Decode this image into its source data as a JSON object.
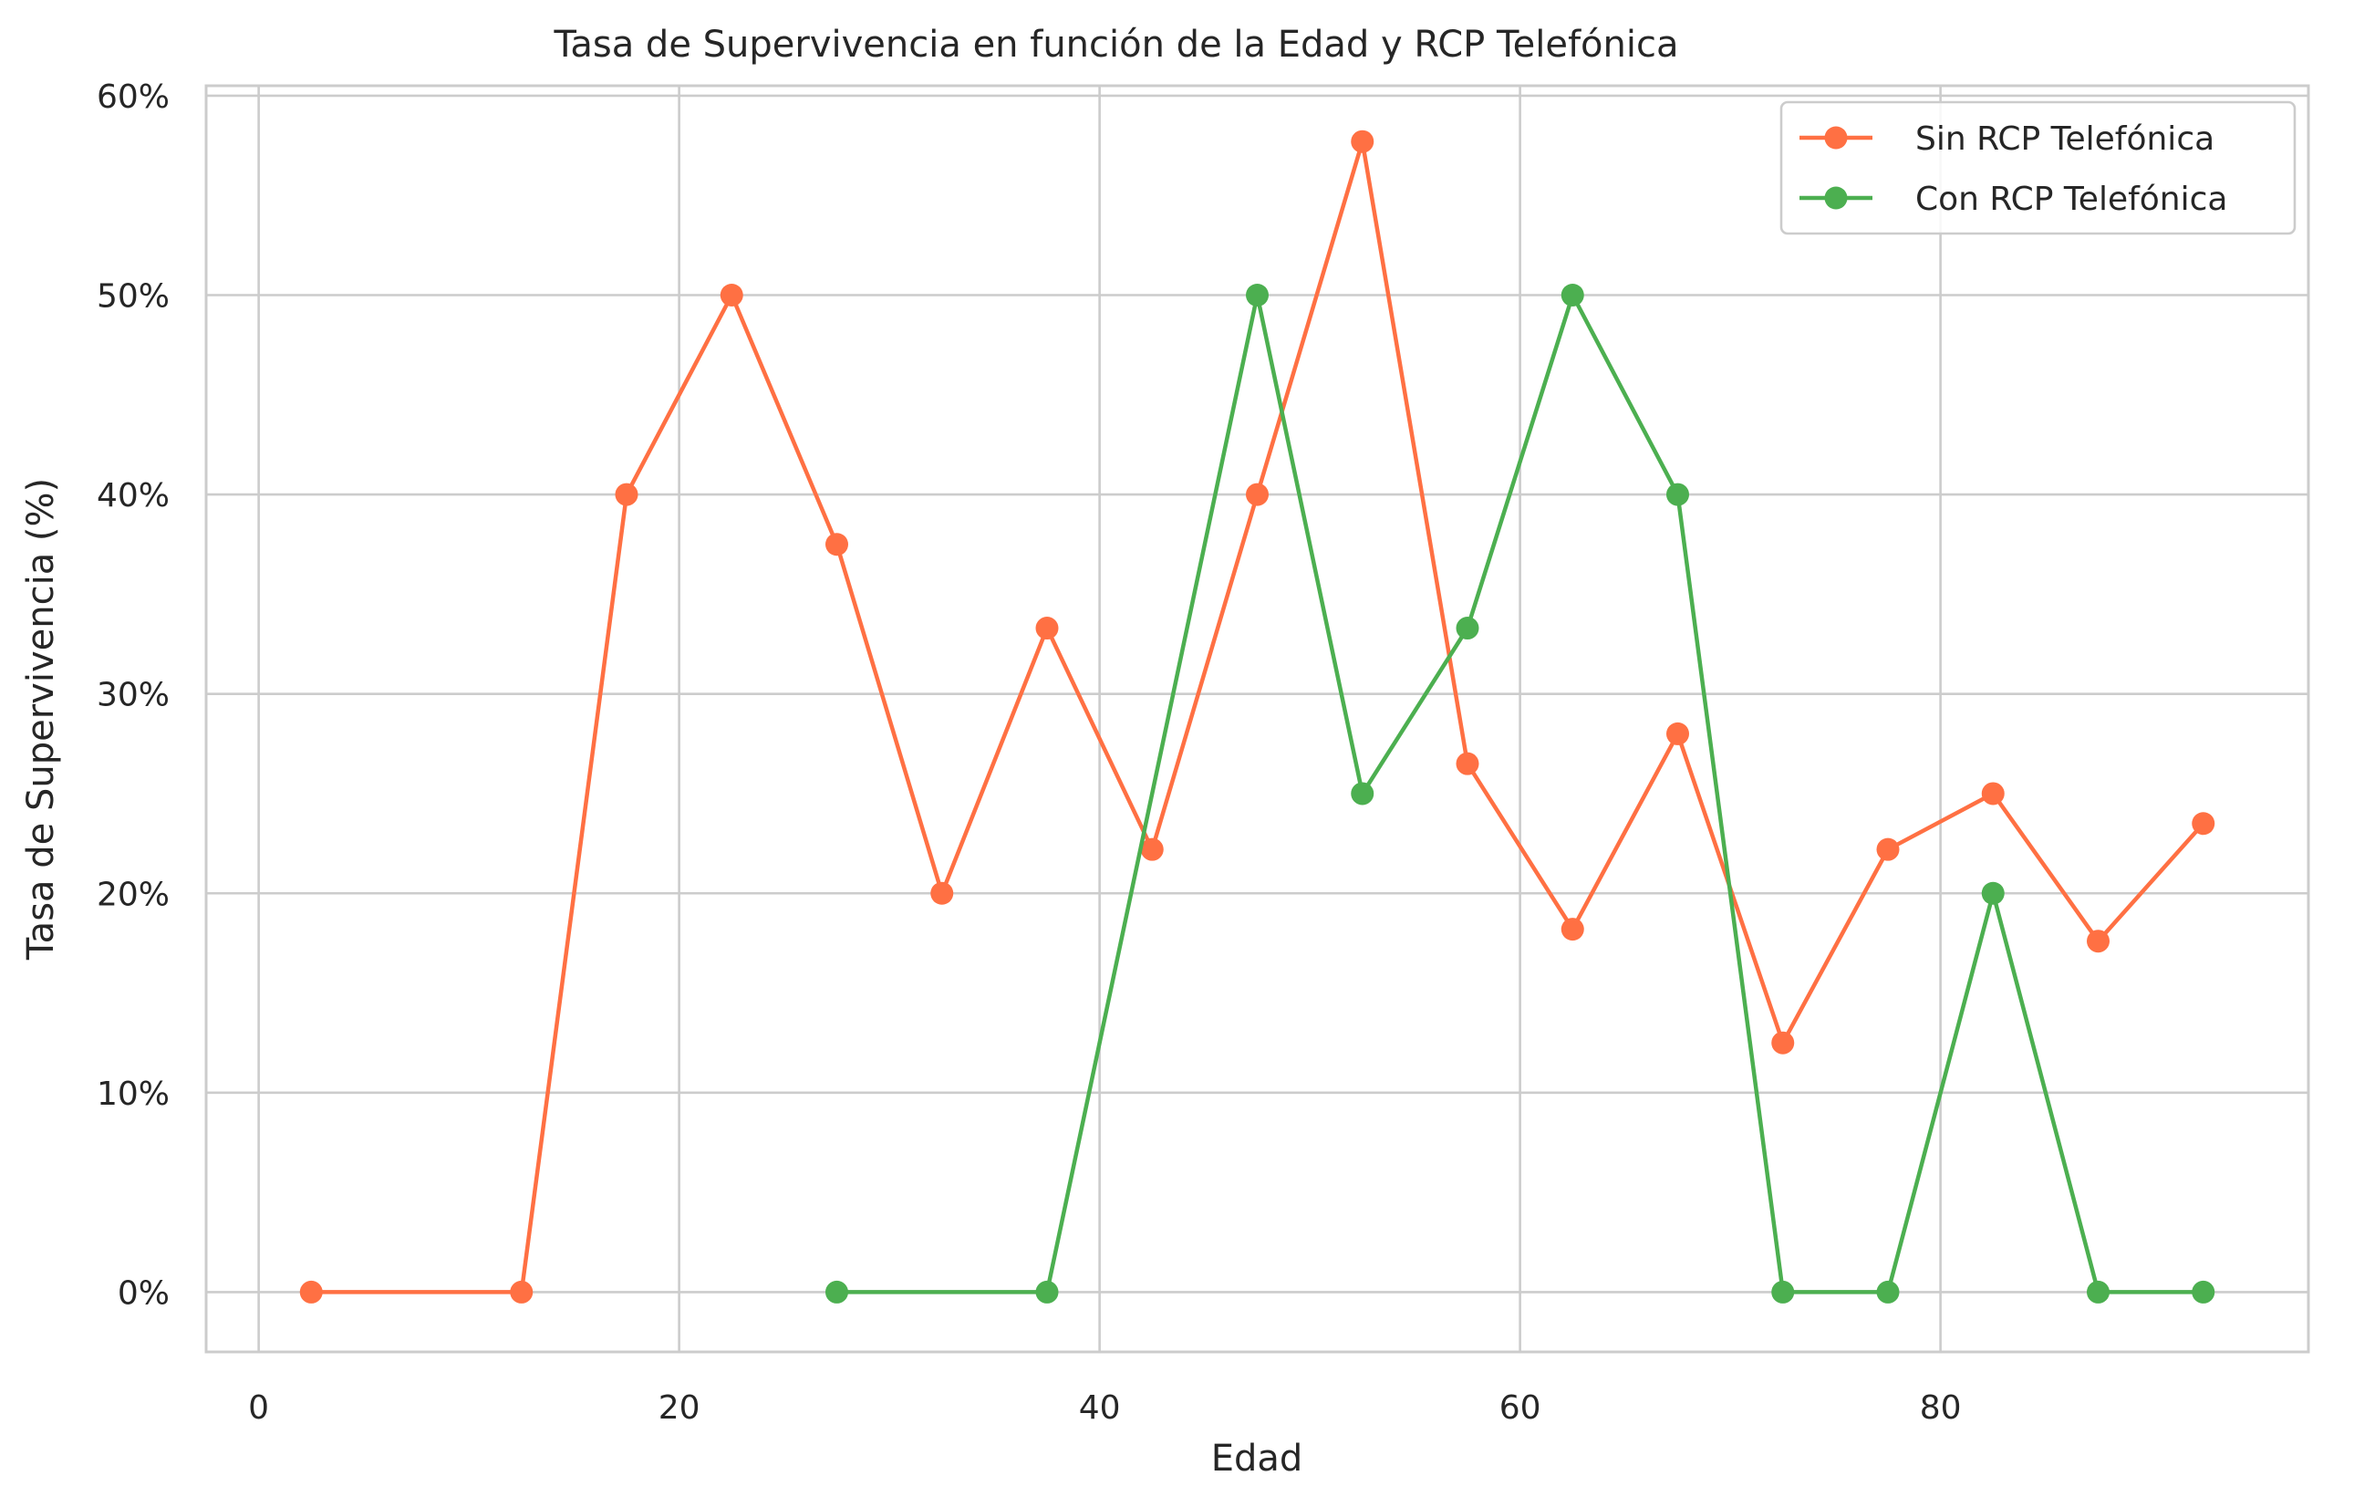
{
  "chart_data": {
    "type": "line",
    "title": "Tasa de Supervivencia en función de la Edad y RCP Telefónica",
    "xlabel": "Edad",
    "ylabel": "Tasa de Supervivencia (%)",
    "xlim": [
      -2.5,
      97.5
    ],
    "ylim": [
      -0.03,
      0.605
    ],
    "xticks": [
      0,
      20,
      40,
      60,
      80
    ],
    "xtick_labels": [
      "0",
      "20",
      "40",
      "60",
      "80"
    ],
    "yticks": [
      0,
      0.1,
      0.2,
      0.3,
      0.4,
      0.5,
      0.6
    ],
    "ytick_labels": [
      "0%",
      "10%",
      "20%",
      "30%",
      "40%",
      "50%",
      "60%"
    ],
    "grid": true,
    "legend_position": "top-right",
    "series": [
      {
        "name": "Sin RCP Telefónica",
        "color": "#ff7043",
        "points": [
          [
            2.5,
            0
          ],
          [
            12.5,
            0
          ],
          [
            17.5,
            0.4
          ],
          [
            22.5,
            0.5
          ],
          [
            27.5,
            0.375
          ],
          [
            32.5,
            0.2
          ],
          [
            37.5,
            0.333
          ],
          [
            42.5,
            0.222
          ],
          [
            47.5,
            0.4
          ],
          [
            52.5,
            0.577
          ],
          [
            57.5,
            0.265
          ],
          [
            62.5,
            0.182
          ],
          [
            67.5,
            0.28
          ],
          [
            72.5,
            0.125
          ],
          [
            77.5,
            0.222
          ],
          [
            82.5,
            0.25
          ],
          [
            87.5,
            0.176
          ],
          [
            92.5,
            0.235
          ]
        ]
      },
      {
        "name": "Con RCP Telefónica",
        "color": "#4caf50",
        "points": [
          [
            27.5,
            0
          ],
          [
            37.5,
            0
          ],
          [
            47.5,
            0.5
          ],
          [
            52.5,
            0.25
          ],
          [
            57.5,
            0.333
          ],
          [
            62.5,
            0.5
          ],
          [
            67.5,
            0.4
          ],
          [
            72.5,
            0
          ],
          [
            77.5,
            0
          ],
          [
            82.5,
            0.2
          ],
          [
            87.5,
            0
          ],
          [
            92.5,
            0
          ]
        ]
      }
    ]
  }
}
